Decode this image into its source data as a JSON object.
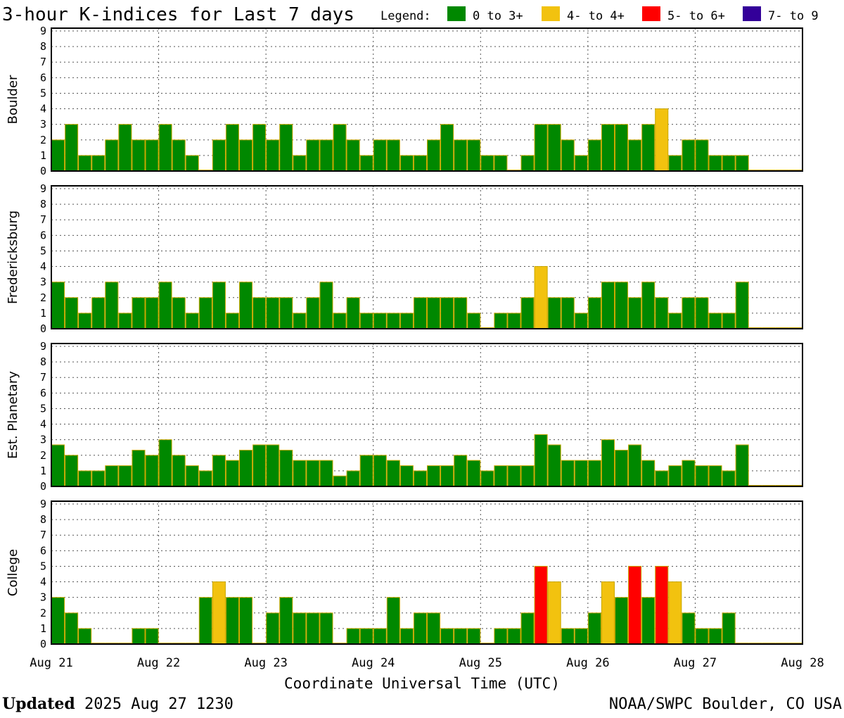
{
  "chart_data": {
    "type": "bar",
    "title": "3-hour K-indices for Last 7 days",
    "legend": {
      "label": "Legend:",
      "placement": "top-right",
      "items": [
        {
          "label": "0 to 3+",
          "color": "#008800"
        },
        {
          "label": "4- to 4+",
          "color": "#f2c20f"
        },
        {
          "label": "5- to 6+",
          "color": "#ff0000"
        },
        {
          "label": "7- to 9",
          "color": "#330099"
        }
      ]
    },
    "ylim": [
      0,
      9
    ],
    "yticks": [
      "0",
      "1",
      "2",
      "3",
      "4",
      "5",
      "6",
      "7",
      "8",
      "9"
    ],
    "x_ticks": [
      "Aug 21",
      "Aug 22",
      "Aug 23",
      "Aug 24",
      "Aug 25",
      "Aug 26",
      "Aug 27",
      "Aug 28"
    ],
    "xlabel": "Coordinate Universal Time (UTC)",
    "interval_hours": 3,
    "grid": true,
    "series": [
      {
        "name": "Boulder",
        "values": [
          2,
          3,
          1,
          1,
          2,
          3,
          2,
          2,
          3,
          2,
          1,
          0,
          2,
          3,
          2,
          3,
          2,
          3,
          1,
          2,
          2,
          3,
          2,
          1,
          2,
          2,
          1,
          1,
          2,
          3,
          2,
          2,
          1,
          1,
          0,
          1,
          3,
          3,
          2,
          1,
          2,
          3,
          3,
          2,
          3,
          4,
          1,
          2,
          2,
          1,
          1,
          1,
          0,
          0,
          0,
          0
        ]
      },
      {
        "name": "Fredericksburg",
        "values": [
          3,
          2,
          1,
          2,
          3,
          1,
          2,
          2,
          3,
          2,
          1,
          2,
          3,
          1,
          3,
          2,
          2,
          2,
          1,
          2,
          3,
          1,
          2,
          1,
          1,
          1,
          1,
          2,
          2,
          2,
          2,
          1,
          0,
          1,
          1,
          2,
          4,
          2,
          2,
          1,
          2,
          3,
          3,
          2,
          3,
          2,
          1,
          2,
          2,
          1,
          1,
          3,
          0,
          0,
          0,
          0
        ]
      },
      {
        "name": "Est. Planetary",
        "values": [
          2.67,
          2,
          1,
          1,
          1.33,
          1.33,
          2.33,
          2,
          3,
          2,
          1.33,
          1,
          2,
          1.67,
          2.33,
          2.67,
          2.67,
          2.33,
          1.67,
          1.67,
          1.67,
          0.67,
          1,
          2,
          2,
          1.67,
          1.33,
          1,
          1.33,
          1.33,
          2,
          1.67,
          1,
          1.33,
          1.33,
          1.33,
          3.33,
          2.67,
          1.67,
          1.67,
          1.67,
          3,
          2.33,
          2.67,
          1.67,
          1,
          1.33,
          1.67,
          1.33,
          1.33,
          1,
          2.67,
          0,
          0,
          0,
          0
        ]
      },
      {
        "name": "College",
        "values": [
          3,
          2,
          1,
          0,
          0,
          0,
          1,
          1,
          0,
          0,
          0,
          3,
          4,
          3,
          3,
          0,
          2,
          3,
          2,
          2,
          2,
          0,
          1,
          1,
          1,
          3,
          1,
          2,
          2,
          1,
          1,
          1,
          0,
          1,
          1,
          2,
          5,
          4,
          1,
          1,
          2,
          4,
          3,
          5,
          3,
          5,
          4,
          2,
          1,
          1,
          2,
          0,
          0,
          0,
          0,
          0
        ]
      }
    ]
  },
  "footer": {
    "updated_label": "Updated",
    "updated_value": "2025 Aug 27 1230",
    "source": "NOAA/SWPC Boulder, CO USA"
  }
}
